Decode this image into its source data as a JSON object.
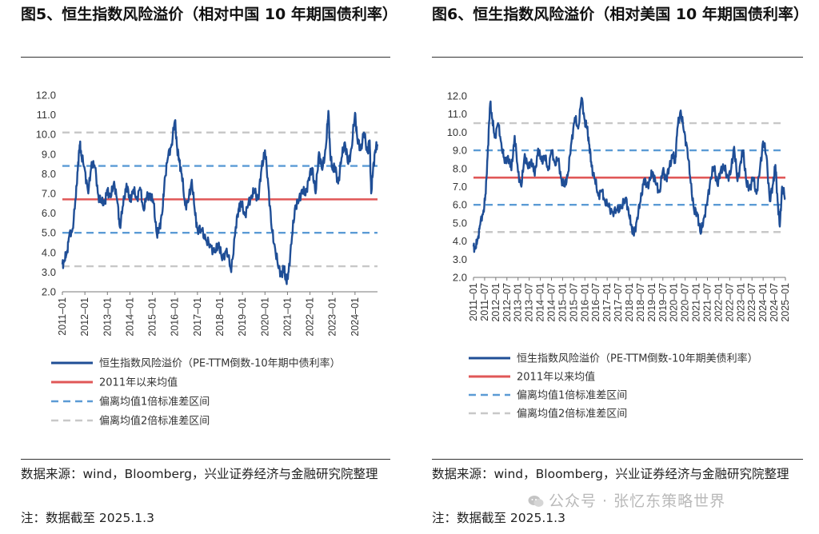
{
  "panels": [
    {
      "title": "图5、恒生指数风险溢价（相对中国 10 年期国债利率）",
      "source": "数据来源：wind，Bloomberg，兴业证券经济与金融研究院整理",
      "note": "注：数据截至 2025.1.3"
    },
    {
      "title": "图6、恒生指数风险溢价（相对美国 10 年期国债利率）",
      "source": "数据来源：wind，Bloomberg，兴业证券经济与金融研究院整理",
      "note": "注：数据截至 2025.1.3"
    }
  ],
  "watermark": "公众号 · 张忆东策略世界",
  "colors": {
    "series": "#1f4e96",
    "mean": "#e05757",
    "band1": "#5b9bd5",
    "band2": "#c8c8c8"
  },
  "chart_data": [
    {
      "type": "line",
      "ylim": [
        2.0,
        12.0
      ],
      "yticks": [
        "2.0",
        "3.0",
        "4.0",
        "5.0",
        "6.0",
        "7.0",
        "8.0",
        "9.0",
        "10.0",
        "11.0",
        "12.0"
      ],
      "xticks": [
        "2011–01",
        "2012–01",
        "2013–01",
        "2014–01",
        "2015–01",
        "2016–01",
        "2017–01",
        "2018–01",
        "2019–01",
        "2020–01",
        "2021–01",
        "2022–01",
        "2023–01",
        "2024–01"
      ],
      "x_start": 2011.0,
      "x_end": 2025.0,
      "mean": 6.7,
      "band1": [
        5.0,
        8.4
      ],
      "band2": [
        3.3,
        10.1
      ],
      "series": [
        {
          "name": "恒生指数风险溢价（PE-TTM倒数-10年期中债利率）",
          "x": [
            2011.0,
            2011.1,
            2011.2,
            2011.3,
            2011.45,
            2011.6,
            2011.7,
            2011.78,
            2011.85,
            2012.0,
            2012.15,
            2012.3,
            2012.45,
            2012.6,
            2012.75,
            2012.9,
            2013.0,
            2013.15,
            2013.3,
            2013.45,
            2013.55,
            2013.7,
            2013.85,
            2014.0,
            2014.15,
            2014.3,
            2014.45,
            2014.6,
            2014.75,
            2014.9,
            2015.05,
            2015.2,
            2015.3,
            2015.45,
            2015.55,
            2015.7,
            2015.85,
            2016.0,
            2016.1,
            2016.2,
            2016.3,
            2016.45,
            2016.6,
            2016.75,
            2016.9,
            2017.0,
            2017.2,
            2017.4,
            2017.6,
            2017.8,
            2017.95,
            2018.1,
            2018.3,
            2018.5,
            2018.7,
            2018.85,
            2018.95,
            2019.1,
            2019.25,
            2019.4,
            2019.55,
            2019.7,
            2019.85,
            2020.0,
            2020.15,
            2020.3,
            2020.45,
            2020.6,
            2020.75,
            2020.85,
            2020.95,
            2021.05,
            2021.2,
            2021.35,
            2021.5,
            2021.65,
            2021.8,
            2021.95,
            2022.1,
            2022.25,
            2022.4,
            2022.55,
            2022.7,
            2022.82,
            2022.9,
            2023.0,
            2023.1,
            2023.25,
            2023.4,
            2023.55,
            2023.7,
            2023.85,
            2024.0,
            2024.1,
            2024.25,
            2024.4,
            2024.55,
            2024.65,
            2024.72,
            2024.8,
            2024.9,
            2025.0
          ],
          "y": [
            3.4,
            3.6,
            4.0,
            4.8,
            5.2,
            6.8,
            8.6,
            9.5,
            8.9,
            8.2,
            7.0,
            8.6,
            8.3,
            6.9,
            6.5,
            6.6,
            7.2,
            6.8,
            7.6,
            6.5,
            5.3,
            6.4,
            7.5,
            6.6,
            7.2,
            6.7,
            7.3,
            6.2,
            6.8,
            7.0,
            6.5,
            4.9,
            5.2,
            6.1,
            7.8,
            8.9,
            9.5,
            10.7,
            9.3,
            8.6,
            8.0,
            6.4,
            6.6,
            7.7,
            5.9,
            5.2,
            5.1,
            4.6,
            4.3,
            4.0,
            4.5,
            3.6,
            4.2,
            3.0,
            5.3,
            6.3,
            6.5,
            5.9,
            6.4,
            6.9,
            7.1,
            6.7,
            8.3,
            9.2,
            7.4,
            5.2,
            4.2,
            3.2,
            2.9,
            3.2,
            2.5,
            3.0,
            4.8,
            6.4,
            6.6,
            7.2,
            6.9,
            7.8,
            8.3,
            7.0,
            9.1,
            8.2,
            9.3,
            11.2,
            9.0,
            8.2,
            8.4,
            7.5,
            8.8,
            9.6,
            8.5,
            9.3,
            11.1,
            9.8,
            9.2,
            10.1,
            9.1,
            9.7,
            7.0,
            8.2,
            9.2,
            9.5
          ]
        }
      ],
      "legend": [
        "恒生指数风险溢价（PE-TTM倒数-10年期中债利率）",
        "2011年以来均值",
        "偏离均值1倍标准差区间",
        "偏离均值2倍标准差区间"
      ]
    },
    {
      "type": "line",
      "ylim": [
        2.0,
        12.0
      ],
      "yticks": [
        "2.0",
        "3.0",
        "4.0",
        "5.0",
        "6.0",
        "7.0",
        "8.0",
        "9.0",
        "10.0",
        "11.0",
        "12.0"
      ],
      "xticks": [
        "2011–01",
        "2011–07",
        "2012–01",
        "2012–07",
        "2013–01",
        "2013–07",
        "2014–01",
        "2014–07",
        "2015–01",
        "2015–07",
        "2016–01",
        "2016–07",
        "2017–01",
        "2017–07",
        "2018–01",
        "2018–07",
        "2019–01",
        "2019–07",
        "2020–01",
        "2020–07",
        "2021–01",
        "2021–07",
        "2022–01",
        "2022–07",
        "2023–01",
        "2023–07",
        "2024–01",
        "2024–07",
        "2025–01"
      ],
      "x_start": 2011.0,
      "x_end": 2025.0,
      "mean": 7.5,
      "band1": [
        6.0,
        9.0
      ],
      "band2": [
        4.5,
        10.5
      ],
      "series": [
        {
          "name": "恒生指数风险溢价（PE-TTM倒数-10年期美债利率）",
          "x": [
            2011.0,
            2011.1,
            2011.2,
            2011.3,
            2011.45,
            2011.55,
            2011.65,
            2011.75,
            2011.85,
            2011.95,
            2012.1,
            2012.25,
            2012.4,
            2012.55,
            2012.7,
            2012.85,
            2013.0,
            2013.15,
            2013.3,
            2013.45,
            2013.6,
            2013.75,
            2013.9,
            2014.05,
            2014.2,
            2014.35,
            2014.5,
            2014.65,
            2014.8,
            2014.95,
            2015.1,
            2015.25,
            2015.4,
            2015.55,
            2015.7,
            2015.85,
            2016.0,
            2016.1,
            2016.2,
            2016.3,
            2016.45,
            2016.6,
            2016.75,
            2016.9,
            2017.05,
            2017.25,
            2017.45,
            2017.65,
            2017.85,
            2018.0,
            2018.1,
            2018.2,
            2018.35,
            2018.5,
            2018.65,
            2018.8,
            2018.95,
            2019.05,
            2019.2,
            2019.35,
            2019.5,
            2019.65,
            2019.8,
            2019.95,
            2020.05,
            2020.15,
            2020.3,
            2020.45,
            2020.6,
            2020.75,
            2020.9,
            2021.05,
            2021.2,
            2021.35,
            2021.5,
            2021.65,
            2021.8,
            2021.95,
            2022.1,
            2022.25,
            2022.4,
            2022.55,
            2022.7,
            2022.85,
            2023.0,
            2023.1,
            2023.25,
            2023.4,
            2023.55,
            2023.7,
            2023.85,
            2024.0,
            2024.15,
            2024.3,
            2024.45,
            2024.55,
            2024.65,
            2024.75,
            2024.85,
            2025.0
          ],
          "y": [
            3.7,
            3.6,
            4.2,
            4.9,
            5.7,
            6.6,
            9.2,
            11.6,
            10.7,
            9.7,
            10.5,
            9.4,
            8.3,
            8.7,
            7.9,
            9.8,
            7.8,
            7.0,
            8.8,
            8.0,
            8.5,
            7.6,
            9.1,
            8.4,
            8.7,
            7.9,
            9.0,
            8.3,
            8.5,
            7.4,
            7.0,
            7.8,
            9.5,
            10.8,
            10.2,
            11.9,
            10.6,
            10.2,
            9.3,
            8.1,
            7.4,
            6.5,
            6.8,
            6.2,
            5.9,
            5.6,
            5.7,
            5.9,
            6.4,
            5.3,
            4.8,
            4.3,
            5.3,
            6.2,
            7.4,
            7.0,
            7.5,
            7.8,
            7.1,
            6.7,
            7.9,
            7.4,
            8.1,
            8.8,
            8.3,
            10.2,
            11.2,
            10.0,
            9.1,
            7.2,
            5.7,
            5.5,
            4.4,
            5.3,
            6.2,
            7.5,
            8.1,
            7.1,
            7.9,
            8.1,
            7.5,
            7.8,
            9.2,
            7.3,
            8.4,
            9.0,
            7.2,
            6.9,
            7.5,
            6.6,
            7.9,
            9.5,
            8.7,
            6.2,
            7.2,
            8.2,
            6.2,
            4.8,
            7.0,
            6.3
          ]
        }
      ],
      "legend": [
        "恒生指数风险溢价（PE-TTM倒数-10年期美债利率）",
        "2011年以来均值",
        "偏离均值1倍标准差区间",
        "偏离均值2倍标准差区间"
      ]
    }
  ]
}
